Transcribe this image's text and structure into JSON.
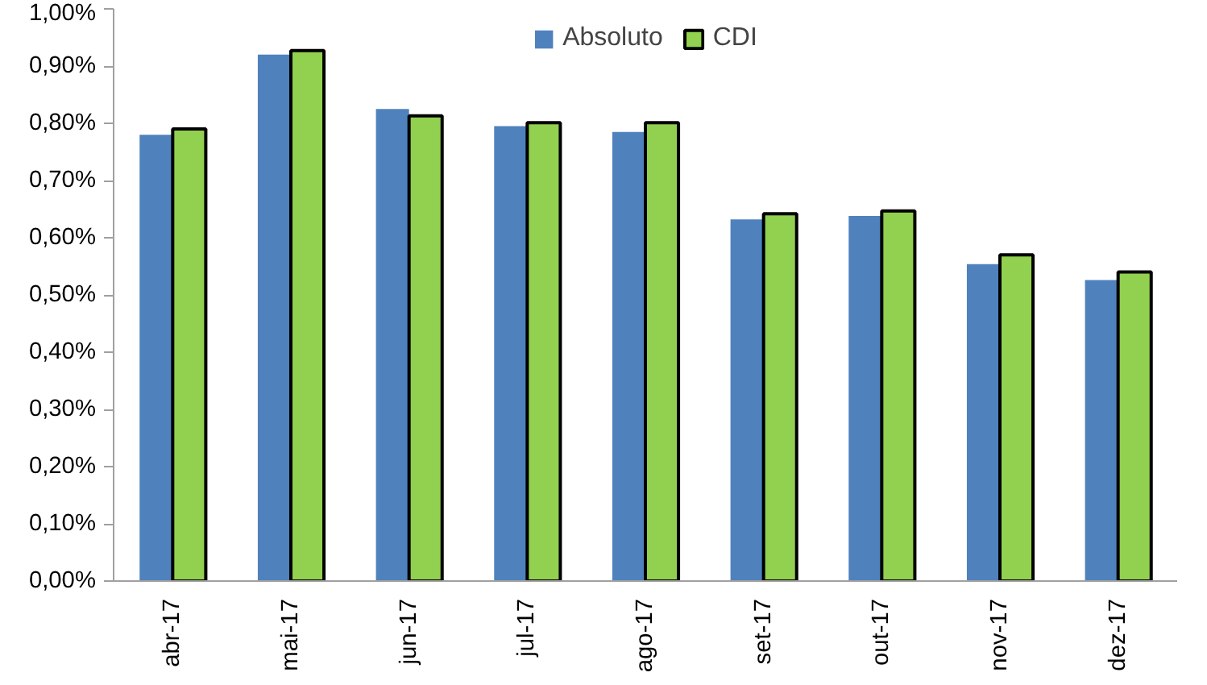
{
  "chart_data": {
    "type": "bar",
    "categories": [
      "abr-17",
      "mai-17",
      "jun-17",
      "jul-17",
      "ago-17",
      "set-17",
      "out-17",
      "nov-17",
      "dez-17"
    ],
    "series": [
      {
        "name": "Absoluto",
        "color": "#4f81bd",
        "values": [
          0.78,
          0.92,
          0.825,
          0.795,
          0.785,
          0.632,
          0.638,
          0.554,
          0.526
        ]
      },
      {
        "name": "CDI",
        "color": "#92d050",
        "values": [
          0.79,
          0.927,
          0.813,
          0.801,
          0.801,
          0.642,
          0.647,
          0.57,
          0.54
        ]
      }
    ],
    "ylim": [
      0,
      1
    ],
    "yticks": [
      {
        "value": 0,
        "label": "0,00%"
      },
      {
        "value": 0.1,
        "label": "0,10%"
      },
      {
        "value": 0.2,
        "label": "0,20%"
      },
      {
        "value": 0.3,
        "label": "0,30%"
      },
      {
        "value": 0.4,
        "label": "0,40%"
      },
      {
        "value": 0.5,
        "label": "0,50%"
      },
      {
        "value": 0.6,
        "label": "0,60%"
      },
      {
        "value": 0.7,
        "label": "0,70%"
      },
      {
        "value": 0.8,
        "label": "0,80%"
      },
      {
        "value": 0.9,
        "label": "0,90%"
      },
      {
        "value": 1,
        "label": "1,00%"
      }
    ],
    "grid": false,
    "legend": "top"
  }
}
